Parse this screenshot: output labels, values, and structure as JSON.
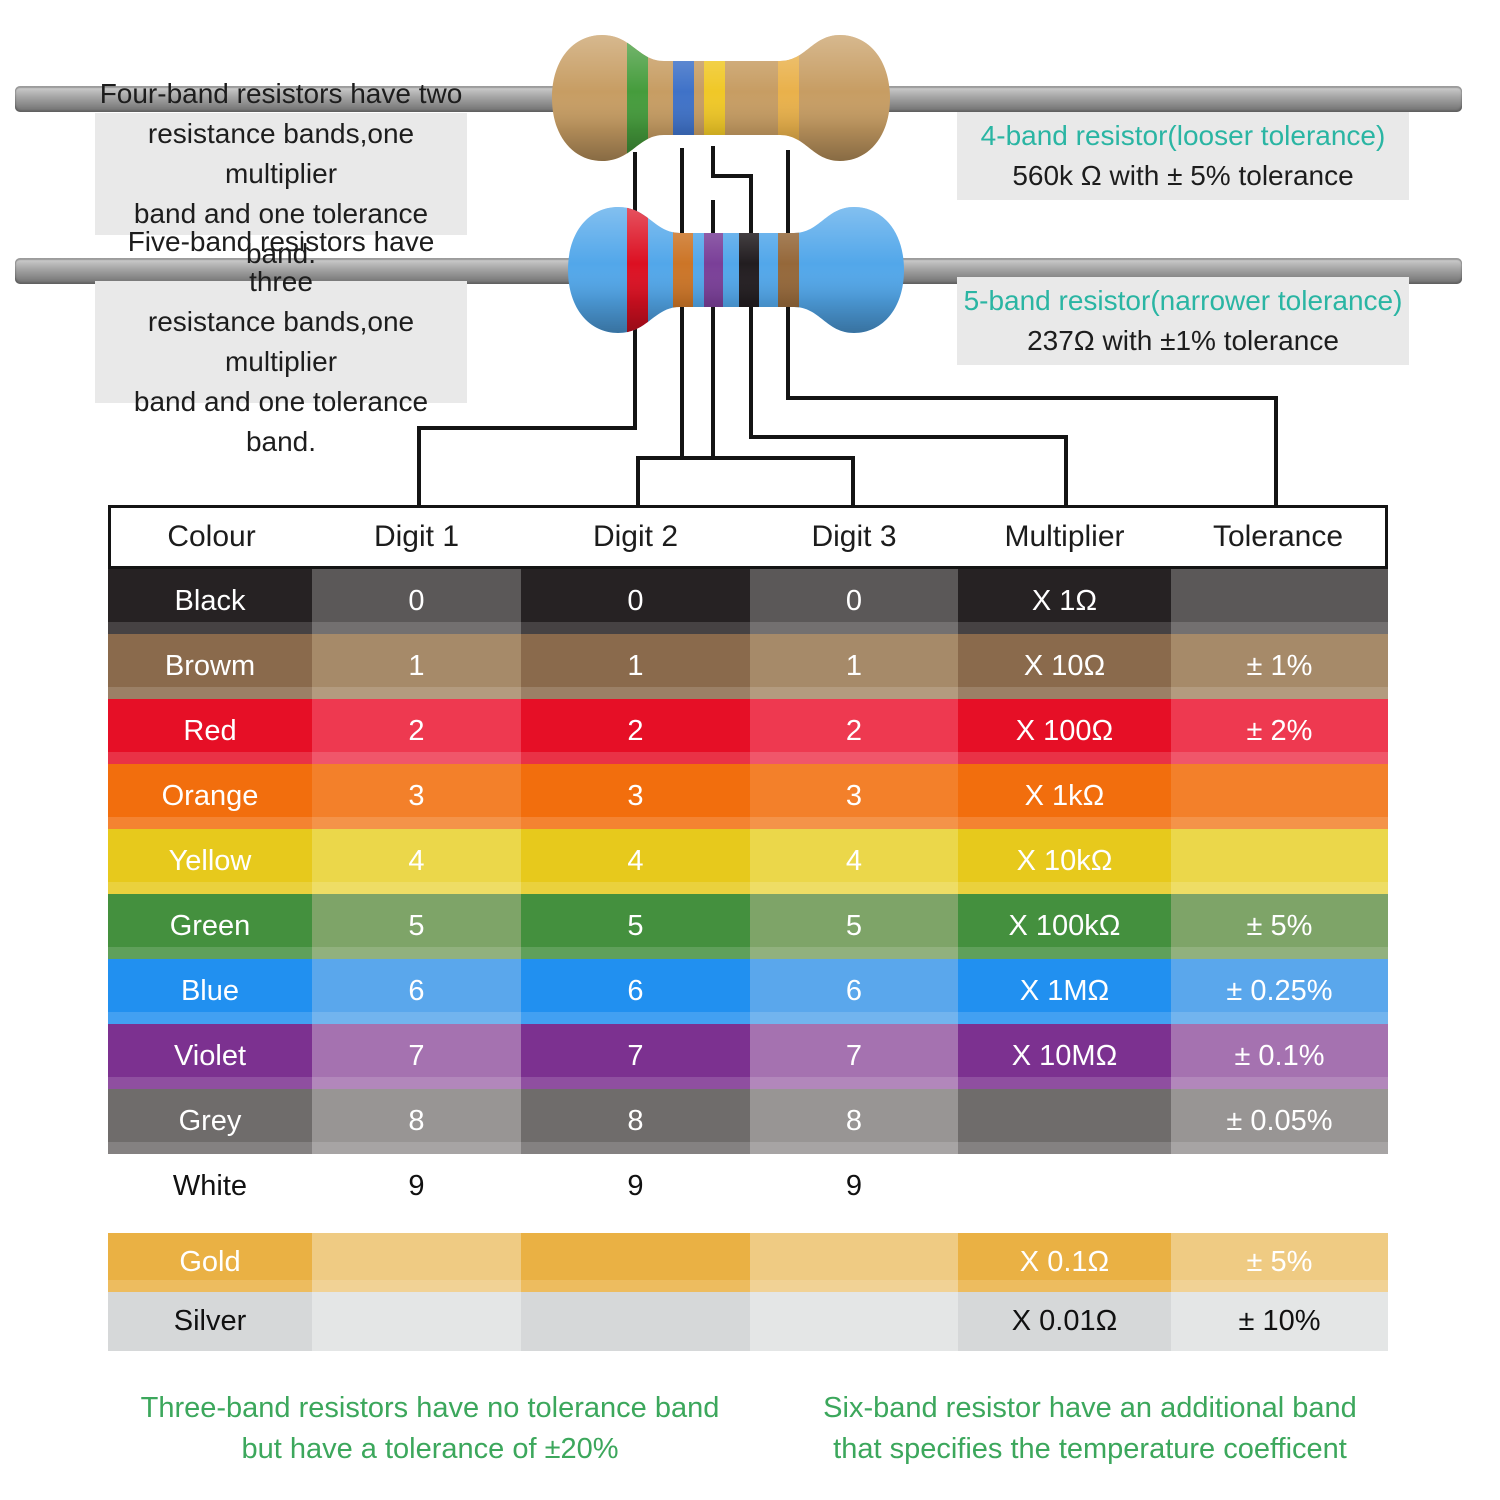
{
  "explanations": {
    "four_band": "Four-band resistors have two\nresistance bands,one multiplier\nband and one tolerance band.",
    "five_band": "Five-band resistors have three\nresistance bands,one multiplier\nband and one tolerance band."
  },
  "resistors": {
    "four_band": {
      "heading": "4-band resistor(looser tolerance)",
      "value_text": "560k Ω with ± 5% tolerance",
      "body_color": "#c79d63",
      "bands": [
        {
          "name": "green",
          "color": "#459c3c"
        },
        {
          "name": "blue",
          "color": "#3f72c8"
        },
        {
          "name": "yellow",
          "color": "#f0c827"
        },
        {
          "name": "gold",
          "color": "#e9b14b"
        }
      ]
    },
    "five_band": {
      "heading": "5-band resistor(narrower tolerance)",
      "value_text": "237Ω with ±1% tolerance",
      "body_color": "#52a7ea",
      "bands": [
        {
          "name": "red",
          "color": "#dc1022"
        },
        {
          "name": "orange",
          "color": "#cc7527"
        },
        {
          "name": "violet",
          "color": "#7a3f98"
        },
        {
          "name": "black",
          "color": "#221d20"
        },
        {
          "name": "brown",
          "color": "#95683a"
        }
      ]
    }
  },
  "table": {
    "columns": [
      "Colour",
      "Digit 1",
      "Digit 2",
      "Digit 3",
      "Multiplier",
      "Tolerance"
    ],
    "rows": [
      {
        "name": "Black",
        "digit1": "0",
        "digit2": "0",
        "digit3": "0",
        "multiplier": "X 1Ω",
        "tolerance": "",
        "color_main": "#262223",
        "color_alt": "#5b5858",
        "text_color": "#ffffff"
      },
      {
        "name": "Browm",
        "digit1": "1",
        "digit2": "1",
        "digit3": "1",
        "multiplier": "X 10Ω",
        "tolerance": "± 1%",
        "color_main": "#8a6a4c",
        "color_alt": "#a68a69",
        "text_color": "#ffffff"
      },
      {
        "name": "Red",
        "digit1": "2",
        "digit2": "2",
        "digit3": "2",
        "multiplier": "X 100Ω",
        "tolerance": "± 2%",
        "color_main": "#e60f26",
        "color_alt": "#ee3950",
        "text_color": "#ffffff"
      },
      {
        "name": "Orange",
        "digit1": "3",
        "digit2": "3",
        "digit3": "3",
        "multiplier": "X 1kΩ",
        "tolerance": "",
        "color_main": "#f26e0d",
        "color_alt": "#f3802a",
        "text_color": "#ffffff"
      },
      {
        "name": "Yellow",
        "digit1": "4",
        "digit2": "4",
        "digit3": "4",
        "multiplier": "X 10kΩ",
        "tolerance": "",
        "color_main": "#e7c91c",
        "color_alt": "#ebd74a",
        "text_color": "#ffffff"
      },
      {
        "name": "Green",
        "digit1": "5",
        "digit2": "5",
        "digit3": "5",
        "multiplier": "X 100kΩ",
        "tolerance": "± 5%",
        "color_main": "#44903e",
        "color_alt": "#7ea468",
        "text_color": "#ffffff"
      },
      {
        "name": "Blue",
        "digit1": "6",
        "digit2": "6",
        "digit3": "6",
        "multiplier": "X 1MΩ",
        "tolerance": "± 0.25%",
        "color_main": "#2190f0",
        "color_alt": "#5aa7ec",
        "text_color": "#ffffff"
      },
      {
        "name": "Violet",
        "digit1": "7",
        "digit2": "7",
        "digit3": "7",
        "multiplier": "X 10MΩ",
        "tolerance": "± 0.1%",
        "color_main": "#7c3190",
        "color_alt": "#a572b0",
        "text_color": "#ffffff"
      },
      {
        "name": "Grey",
        "digit1": "8",
        "digit2": "8",
        "digit3": "8",
        "multiplier": "",
        "tolerance": "± 0.05%",
        "color_main": "#6f6c6b",
        "color_alt": "#989594",
        "text_color": "#ffffff"
      },
      {
        "name": "White",
        "digit1": "9",
        "digit2": "9",
        "digit3": "9",
        "multiplier": "",
        "tolerance": "",
        "color_main": "#ffffff",
        "color_alt": "#ffffff",
        "text_color": "#111111",
        "no_sheen": true
      },
      {
        "name": "Gold",
        "digit1": "",
        "digit2": "",
        "digit3": "",
        "multiplier": "X 0.1Ω",
        "tolerance": "± 5%",
        "color_main": "#eab144",
        "color_alt": "#efcb83",
        "text_color": "#ffffff",
        "gap_before": 14,
        "height": 59
      },
      {
        "name": "Silver",
        "digit1": "",
        "digit2": "",
        "digit3": "",
        "multiplier": "X 0.01Ω",
        "tolerance": "± 10%",
        "color_main": "#d6d8d9",
        "color_alt": "#e4e6e6",
        "text_color": "#111111",
        "height": 59,
        "no_sheen": true
      }
    ]
  },
  "notes": {
    "three_band": "Three-band resistors have no tolerance band\nbut have a tolerance of ±20%",
    "six_band": "Six-band resistor have an additional band\nthat specifies the temperature coefficent"
  },
  "colors": {
    "teal_heading": "#2ab5a3",
    "note_green": "#3ca75c",
    "connector_line": "#141414",
    "caption_background": "#e9e9e9"
  }
}
